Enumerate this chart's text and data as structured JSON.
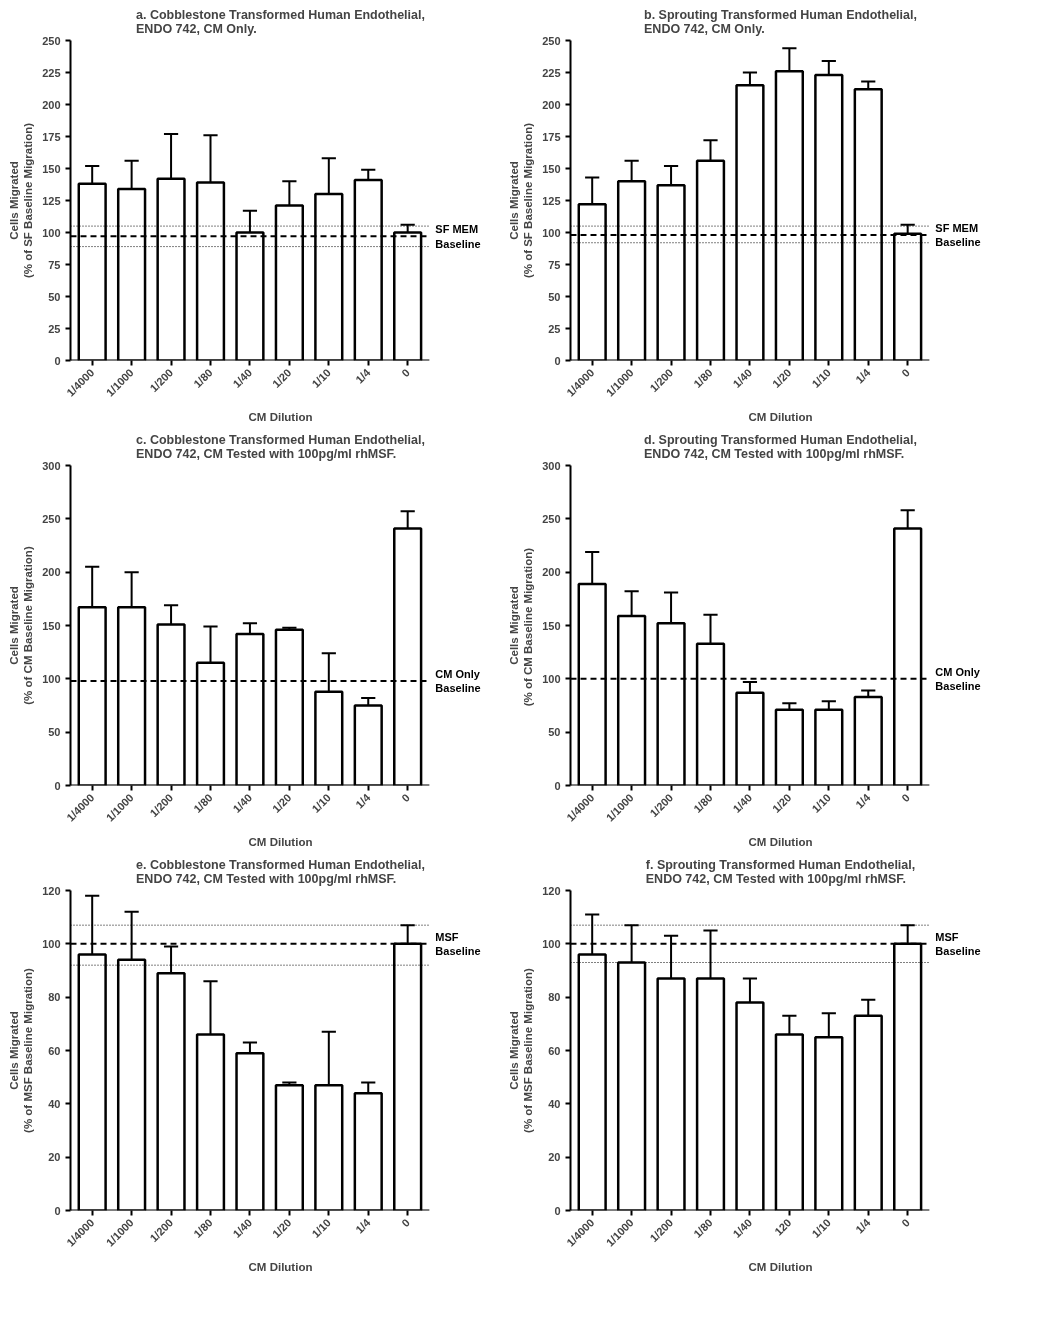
{
  "chart_data": [
    {
      "type": "bar",
      "title": "a. Cobblestone Transformed Human Endothelial,\nENDO 742, CM Only.",
      "xlabel": "CM Dilution",
      "ylabel": "Cells Migrated\n(% of SF Baseline Migration)",
      "categories": [
        "1/4000",
        "1/1000",
        "1/200",
        "1/80",
        "1/40",
        "1/20",
        "1/10",
        "1/4",
        "0"
      ],
      "series": [
        {
          "color": "#ffffff",
          "values": [
            138,
            134,
            142,
            139,
            100,
            121,
            130,
            141,
            100
          ],
          "errors": [
            [
              138,
              152
            ],
            [
              134,
              156
            ],
            [
              142,
              177
            ],
            [
              139,
              176
            ],
            [
              100,
              117
            ],
            [
              121,
              140
            ],
            [
              130,
              158
            ],
            [
              141,
              149
            ],
            [
              100,
              106
            ]
          ]
        }
      ],
      "ylim": [
        0,
        250
      ],
      "yticks": [
        0,
        25,
        50,
        75,
        100,
        125,
        150,
        175,
        200,
        225,
        250
      ],
      "ref_lines": [
        {
          "axis": "y",
          "value": 97,
          "label": "SF MEM\nBaseline",
          "line_style": "dashed"
        },
        {
          "axis": "y",
          "value": 105,
          "line_style": "dotted"
        },
        {
          "axis": "y",
          "value": 89,
          "line_style": "dotted"
        }
      ]
    },
    {
      "type": "bar",
      "title": "b. Sprouting Transformed Human Endothelial,\nENDO 742, CM Only.",
      "xlabel": "CM Dilution",
      "ylabel": "Cells Migrated\n(% of SF Baseline Migration)",
      "categories": [
        "1/4000",
        "1/1000",
        "1/200",
        "1/80",
        "1/40",
        "1/20",
        "1/10",
        "1/4",
        "0"
      ],
      "series": [
        {
          "color": "#ffffff",
          "values": [
            122,
            140,
            137,
            156,
            215,
            226,
            223,
            212,
            99
          ],
          "errors": [
            [
              122,
              143
            ],
            [
              140,
              156
            ],
            [
              137,
              152
            ],
            [
              156,
              172
            ],
            [
              215,
              225
            ],
            [
              226,
              244
            ],
            [
              223,
              234
            ],
            [
              212,
              218
            ],
            [
              99,
              106
            ]
          ]
        }
      ],
      "ylim": [
        0,
        250
      ],
      "yticks": [
        0,
        25,
        50,
        75,
        100,
        125,
        150,
        175,
        200,
        225,
        250
      ],
      "ref_lines": [
        {
          "axis": "y",
          "value": 98,
          "label": "SF MEM\nBaseline",
          "line_style": "dashed"
        },
        {
          "axis": "y",
          "value": 105,
          "line_style": "dotted"
        },
        {
          "axis": "y",
          "value": 92,
          "line_style": "dotted"
        }
      ]
    },
    {
      "type": "bar",
      "title": "c. Cobblestone Transformed Human Endothelial,\nENDO 742, CM Tested with 100pg/ml rhMSF.",
      "xlabel": "CM Dilution",
      "ylabel": "Cells Migrated\n(% of CM Baseline Migration)",
      "categories": [
        "1/4000",
        "1/1000",
        "1/200",
        "1/80",
        "1/40",
        "1/20",
        "1/10",
        "1/4",
        "0"
      ],
      "series": [
        {
          "color": "#ffffff",
          "values": [
            167,
            167,
            151,
            115,
            142,
            146,
            88,
            75,
            241
          ],
          "errors": [
            [
              167,
              205
            ],
            [
              167,
              200
            ],
            [
              151,
              169
            ],
            [
              115,
              149
            ],
            [
              142,
              152
            ],
            [
              146,
              148
            ],
            [
              88,
              124
            ],
            [
              75,
              82
            ],
            [
              241,
              257
            ]
          ]
        }
      ],
      "ylim": [
        0,
        300
      ],
      "yticks": [
        0,
        50,
        100,
        150,
        200,
        250,
        300
      ],
      "ref_lines": [
        {
          "axis": "y",
          "value": 98,
          "label": "CM Only\nBaseline",
          "line_style": "dashed"
        }
      ]
    },
    {
      "type": "bar",
      "title": "d. Sprouting Transformed Human Endothelial,\nENDO 742, CM Tested with 100pg/ml rhMSF.",
      "xlabel": "CM Dilution",
      "ylabel": "Cells Migrated\n(% of  CM Baseline Migration)",
      "categories": [
        "1/4000",
        "1/1000",
        "1/200",
        "1/80",
        "1/40",
        "1/20",
        "1/10",
        "1/4",
        "0"
      ],
      "series": [
        {
          "color": "#ffffff",
          "values": [
            189,
            159,
            152,
            133,
            87,
            71,
            71,
            83,
            241
          ],
          "errors": [
            [
              189,
              219
            ],
            [
              159,
              182
            ],
            [
              152,
              181
            ],
            [
              133,
              160
            ],
            [
              87,
              97
            ],
            [
              71,
              77
            ],
            [
              71,
              79
            ],
            [
              83,
              89
            ],
            [
              241,
              258
            ]
          ]
        }
      ],
      "ylim": [
        0,
        300
      ],
      "yticks": [
        0,
        50,
        100,
        150,
        200,
        250,
        300
      ],
      "ref_lines": [
        {
          "axis": "y",
          "value": 100,
          "label": "CM Only\nBaseline",
          "line_style": "dashed"
        }
      ]
    },
    {
      "type": "bar",
      "title": "e. Cobblestone Transformed Human Endothelial,\nENDO 742, CM Tested with 100pg/ml rhMSF.",
      "xlabel": "CM Dilution",
      "ylabel": "Cells Migrated\n(% of MSF Baseline Migration)",
      "categories": [
        "1/4000",
        "1/1000",
        "1/200",
        "1/80",
        "1/40",
        "1/20",
        "1/10",
        "1/4",
        "0"
      ],
      "series": [
        {
          "color": "#ffffff",
          "values": [
            96,
            94,
            89,
            66,
            59,
            47,
            47,
            44,
            100
          ],
          "errors": [
            [
              96,
              118
            ],
            [
              94,
              112
            ],
            [
              89,
              99
            ],
            [
              66,
              86
            ],
            [
              59,
              63
            ],
            [
              47,
              48
            ],
            [
              47,
              67
            ],
            [
              44,
              48
            ],
            [
              100,
              107
            ]
          ]
        }
      ],
      "ylim": [
        0,
        120
      ],
      "yticks": [
        0,
        20,
        40,
        60,
        80,
        100,
        120
      ],
      "ref_lines": [
        {
          "axis": "y",
          "value": 100,
          "label": "MSF\nBaseline",
          "line_style": "dashed"
        },
        {
          "axis": "y",
          "value": 107,
          "line_style": "dotted"
        },
        {
          "axis": "y",
          "value": 92,
          "line_style": "dotted"
        }
      ]
    },
    {
      "type": "bar",
      "title": "f. Sprouting Transformed Human Endothelial,\nENDO 742, CM Tested with 100pg/ml rhMSF.",
      "xlabel": "CM Dilution",
      "ylabel": "Cells Migrated\n(% of MSF Baseline Migration)",
      "categories": [
        "1/4000",
        "1/1000",
        "1/200",
        "1/80",
        "1/40",
        "120",
        "1/10",
        "1/4",
        "0"
      ],
      "series": [
        {
          "color": "#ffffff",
          "values": [
            96,
            93,
            87,
            87,
            78,
            66,
            65,
            73,
            100
          ],
          "errors": [
            [
              96,
              111
            ],
            [
              93,
              107
            ],
            [
              87,
              103
            ],
            [
              87,
              105
            ],
            [
              78,
              87
            ],
            [
              66,
              73
            ],
            [
              65,
              74
            ],
            [
              73,
              79
            ],
            [
              100,
              107
            ]
          ]
        }
      ],
      "ylim": [
        0,
        120
      ],
      "yticks": [
        0,
        20,
        40,
        60,
        80,
        100,
        120
      ],
      "ref_lines": [
        {
          "axis": "y",
          "value": 100,
          "label": "MSF\nBaseline",
          "line_style": "dashed"
        },
        {
          "axis": "y",
          "value": 107,
          "line_style": "dotted"
        },
        {
          "axis": "y",
          "value": 93,
          "line_style": "dotted"
        }
      ]
    }
  ]
}
